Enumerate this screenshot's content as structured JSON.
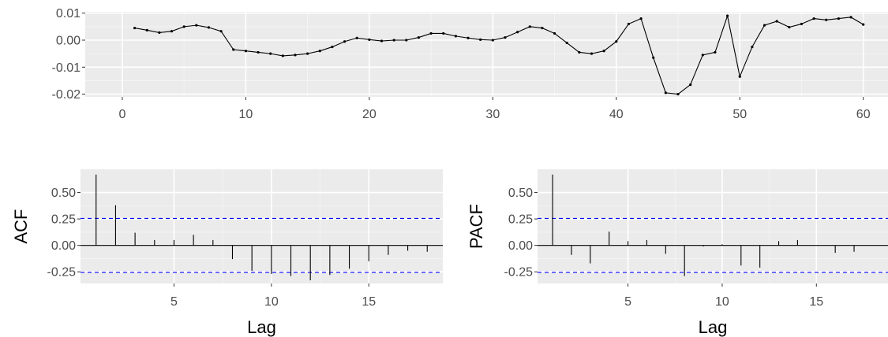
{
  "chart_data": [
    {
      "type": "line",
      "title": "",
      "xlabel": "",
      "ylabel": "",
      "xlim": [
        -3,
        62
      ],
      "ylim": [
        -0.021,
        0.0105
      ],
      "xticks": [
        0,
        10,
        20,
        30,
        40,
        50,
        60
      ],
      "xtick_labels": [
        "0",
        "10",
        "20",
        "30",
        "40",
        "50",
        "60"
      ],
      "yticks": [
        -0.02,
        -0.01,
        0.0,
        0.01
      ],
      "ytick_labels": [
        "-0.02",
        "-0.01",
        "0.00",
        "0.01"
      ],
      "grid": true,
      "series": [
        {
          "x": [
            1,
            2,
            3,
            4,
            5,
            6,
            7,
            8,
            9,
            10,
            11,
            12,
            13,
            14,
            15,
            16,
            17,
            18,
            19,
            20,
            21,
            22,
            23,
            24,
            25,
            26,
            27,
            28,
            29,
            30,
            31,
            32,
            33,
            34,
            35,
            36,
            37,
            38,
            39,
            40,
            41,
            42,
            43,
            44,
            45,
            46,
            47,
            48,
            49,
            50,
            51,
            52,
            53,
            54,
            55,
            56,
            57,
            58,
            59,
            60
          ],
          "values": [
            0.0045,
            0.0037,
            0.0028,
            0.0033,
            0.005,
            0.0055,
            0.0047,
            0.0033,
            -0.0035,
            -0.004,
            -0.0045,
            -0.005,
            -0.0058,
            -0.0055,
            -0.005,
            -0.004,
            -0.0025,
            -0.0005,
            0.0008,
            0.0002,
            -0.0003,
            0.0,
            0.0,
            0.001,
            0.0025,
            0.0025,
            0.0015,
            0.0008,
            0.0002,
            0.0,
            0.001,
            0.003,
            0.005,
            0.0045,
            0.0025,
            -0.001,
            -0.0045,
            -0.005,
            -0.004,
            -0.0005,
            0.006,
            0.008,
            -0.0065,
            -0.0195,
            -0.02,
            -0.0165,
            -0.0055,
            -0.0045,
            0.009,
            -0.0135,
            -0.0025,
            0.0055,
            0.007,
            0.0048,
            0.006,
            0.008,
            0.0075,
            0.008,
            0.0085,
            0.0058
          ]
        }
      ]
    },
    {
      "type": "bar",
      "title": "",
      "xlabel": "Lag",
      "ylabel": "ACF",
      "xlim": [
        0.2,
        18.8
      ],
      "ylim": [
        -0.36,
        0.72
      ],
      "xticks": [
        5,
        10,
        15
      ],
      "xtick_labels": [
        "5",
        "10",
        "15"
      ],
      "yticks": [
        -0.25,
        0.0,
        0.25,
        0.5
      ],
      "ytick_labels": [
        "-0.25",
        "0.00",
        "0.25",
        "0.50"
      ],
      "confidence_band": 0.255,
      "grid": true,
      "x": [
        1,
        2,
        3,
        4,
        5,
        6,
        7,
        8,
        9,
        10,
        11,
        12,
        13,
        14,
        15,
        16,
        17,
        18
      ],
      "values": [
        0.67,
        0.38,
        0.12,
        0.05,
        0.05,
        0.1,
        0.05,
        -0.13,
        -0.24,
        -0.27,
        -0.29,
        -0.33,
        -0.28,
        -0.22,
        -0.15,
        -0.09,
        -0.05,
        -0.06
      ]
    },
    {
      "type": "bar",
      "title": "",
      "xlabel": "Lag",
      "ylabel": "PACF",
      "xlim": [
        0.2,
        18.8
      ],
      "ylim": [
        -0.36,
        0.72
      ],
      "xticks": [
        5,
        10,
        15
      ],
      "xtick_labels": [
        "5",
        "10",
        "15"
      ],
      "yticks": [
        -0.25,
        0.0,
        0.25,
        0.5
      ],
      "ytick_labels": [
        "-0.25",
        "0.00",
        "0.25",
        "0.50"
      ],
      "confidence_band": 0.255,
      "grid": true,
      "x": [
        1,
        2,
        3,
        4,
        5,
        6,
        7,
        8,
        9,
        10,
        11,
        12,
        13,
        14,
        15,
        16,
        17,
        18
      ],
      "values": [
        0.67,
        -0.09,
        -0.17,
        0.13,
        0.04,
        0.05,
        -0.08,
        -0.29,
        -0.01,
        0.01,
        -0.19,
        -0.21,
        0.04,
        0.05,
        0.0,
        -0.07,
        -0.06,
        0.0
      ]
    }
  ]
}
